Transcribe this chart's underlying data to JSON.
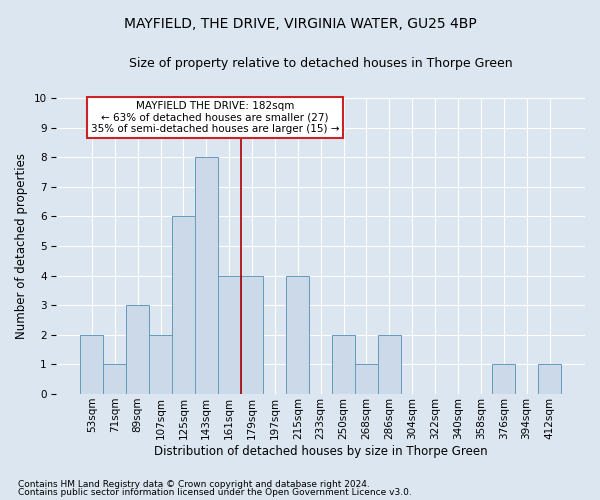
{
  "title": "MAYFIELD, THE DRIVE, VIRGINIA WATER, GU25 4BP",
  "subtitle": "Size of property relative to detached houses in Thorpe Green",
  "xlabel": "Distribution of detached houses by size in Thorpe Green",
  "ylabel": "Number of detached properties",
  "footer1": "Contains HM Land Registry data © Crown copyright and database right 2024.",
  "footer2": "Contains public sector information licensed under the Open Government Licence v3.0.",
  "bin_labels": [
    "53sqm",
    "71sqm",
    "89sqm",
    "107sqm",
    "125sqm",
    "143sqm",
    "161sqm",
    "179sqm",
    "197sqm",
    "215sqm",
    "233sqm",
    "250sqm",
    "268sqm",
    "286sqm",
    "304sqm",
    "322sqm",
    "340sqm",
    "358sqm",
    "376sqm",
    "394sqm",
    "412sqm"
  ],
  "bar_values": [
    2,
    1,
    3,
    2,
    6,
    8,
    4,
    4,
    0,
    4,
    0,
    2,
    1,
    2,
    0,
    0,
    0,
    0,
    1,
    0,
    1
  ],
  "bar_color": "#ccd9e8",
  "bar_edge_color": "#6699bb",
  "vline_x": 6.5,
  "vline_color": "#aa0000",
  "annotation_text": "MAYFIELD THE DRIVE: 182sqm\n← 63% of detached houses are smaller (27)\n35% of semi-detached houses are larger (15) →",
  "annotation_box_color": "#ffffff",
  "annotation_box_edge": "#cc2222",
  "ylim": [
    0,
    10
  ],
  "yticks": [
    0,
    1,
    2,
    3,
    4,
    5,
    6,
    7,
    8,
    9,
    10
  ],
  "background_color": "#dce6f0",
  "plot_bg_color": "#dce6f0",
  "grid_color": "#ffffff",
  "title_fontsize": 10,
  "subtitle_fontsize": 9,
  "ylabel_fontsize": 8.5,
  "xlabel_fontsize": 8.5,
  "tick_fontsize": 7.5,
  "footer_fontsize": 6.5
}
